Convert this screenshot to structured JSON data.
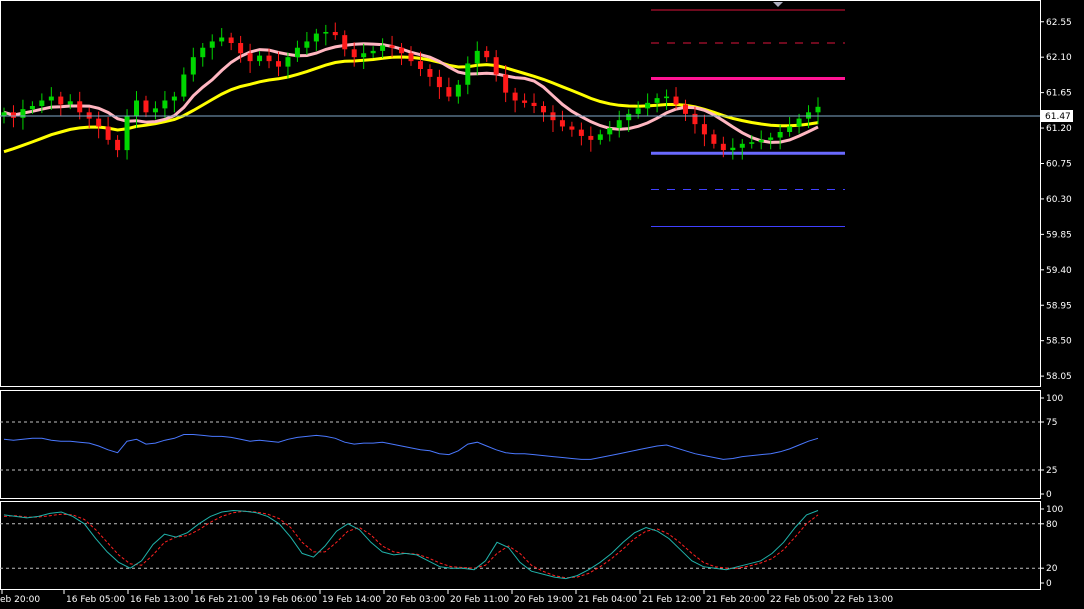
{
  "colors": {
    "background": "#000000",
    "frame": "#ffffff",
    "bull_candle": "#00d600",
    "bear_candle": "#ff1a1a",
    "ma_fast": "#ffb6c1",
    "ma_slow": "#ffff00",
    "rsi": "#4a78ff",
    "stoch_main": "#20b2aa",
    "stoch_signal": "#ff2020",
    "pivot_top": "#dc143c",
    "pivot_mid_r": "#ff1493",
    "pivot_mid_s": "#6a6aff",
    "pivot_low": "#4040ff",
    "current_price": "#7fa7c7"
  },
  "chart_data": [
    {
      "type": "candlestick",
      "name": "price",
      "ylim": [
        57.95,
        62.75
      ],
      "y_ticks": [
        "62.55",
        "62.10",
        "61.65",
        "61.20",
        "60.75",
        "60.30",
        "59.85",
        "59.40",
        "58.95",
        "58.50",
        "58.05"
      ],
      "current_price": "61.47",
      "x_ticks": [
        "eb 20:00",
        "16 Feb 05:00",
        "16 Feb 13:00",
        "16 Feb 21:00",
        "19 Feb 06:00",
        "19 Feb 14:00",
        "20 Feb 03:00",
        "20 Feb 11:00",
        "20 Feb 19:00",
        "21 Feb 04:00",
        "21 Feb 12:00",
        "21 Feb 20:00",
        "22 Feb 05:00",
        "22 Feb 13:00"
      ],
      "close_series": [
        61.4,
        61.33,
        61.44,
        61.48,
        61.55,
        61.6,
        61.5,
        61.54,
        61.4,
        61.32,
        61.22,
        61.05,
        60.92,
        61.35,
        61.55,
        61.4,
        61.45,
        61.55,
        61.6,
        61.88,
        62.1,
        62.22,
        62.3,
        62.35,
        62.28,
        62.15,
        62.05,
        62.12,
        62.05,
        61.98,
        62.1,
        62.22,
        62.3,
        62.4,
        62.42,
        62.38,
        62.2,
        62.1,
        62.15,
        62.18,
        62.25,
        62.22,
        62.15,
        62.05,
        61.95,
        61.85,
        61.72,
        61.6,
        61.75,
        62.02,
        62.18,
        62.1,
        61.88,
        61.65,
        61.55,
        61.52,
        61.48,
        61.4,
        61.3,
        61.22,
        61.18,
        61.1,
        61.05,
        61.12,
        61.2,
        61.3,
        61.38,
        61.45,
        61.52,
        61.58,
        61.6,
        61.5,
        61.38,
        61.25,
        61.12,
        61.0,
        60.92,
        60.95,
        61.0,
        61.02,
        61.05,
        61.08,
        61.15,
        61.22,
        61.32,
        61.4,
        61.47
      ],
      "pivot_levels": [
        62.7,
        62.28,
        61.83,
        60.88,
        60.42,
        59.95
      ]
    },
    {
      "type": "line",
      "name": "rsi",
      "ylim": [
        0,
        100
      ],
      "y_ticks": [
        "100",
        "75",
        "25",
        "0"
      ],
      "levels": [
        75,
        25
      ],
      "values": [
        57,
        56,
        57,
        58,
        58,
        56,
        55,
        55,
        54,
        53,
        50,
        46,
        43,
        55,
        57,
        52,
        53,
        56,
        58,
        62,
        62,
        61,
        60,
        60,
        59,
        57,
        55,
        56,
        55,
        54,
        57,
        59,
        60,
        61,
        60,
        58,
        54,
        52,
        53,
        53,
        54,
        52,
        50,
        48,
        46,
        45,
        42,
        41,
        45,
        52,
        54,
        50,
        46,
        43,
        42,
        42,
        41,
        40,
        39,
        38,
        37,
        36,
        36,
        38,
        40,
        42,
        44,
        46,
        48,
        50,
        51,
        48,
        45,
        42,
        40,
        38,
        36,
        37,
        39,
        40,
        41,
        42,
        44,
        47,
        51,
        55,
        58
      ]
    },
    {
      "type": "line",
      "name": "stochastic",
      "ylim": [
        0,
        100
      ],
      "y_ticks": [
        "100",
        "80",
        "20",
        "0"
      ],
      "levels": [
        80,
        20
      ],
      "main": [
        92,
        90,
        88,
        90,
        94,
        96,
        90,
        80,
        60,
        42,
        28,
        20,
        30,
        52,
        66,
        62,
        68,
        80,
        90,
        96,
        98,
        97,
        95,
        90,
        80,
        62,
        40,
        35,
        50,
        70,
        80,
        72,
        55,
        42,
        38,
        40,
        38,
        30,
        22,
        20,
        20,
        18,
        30,
        55,
        48,
        28,
        16,
        12,
        8,
        6,
        10,
        18,
        28,
        40,
        55,
        68,
        75,
        70,
        60,
        45,
        30,
        22,
        20,
        18,
        22,
        26,
        30,
        40,
        55,
        75,
        92,
        98
      ],
      "signal": [
        90,
        91,
        89,
        89,
        91,
        93,
        92,
        86,
        72,
        55,
        38,
        26,
        24,
        38,
        55,
        62,
        64,
        72,
        82,
        90,
        95,
        97,
        96,
        93,
        87,
        75,
        55,
        42,
        42,
        55,
        70,
        75,
        65,
        50,
        42,
        40,
        39,
        34,
        27,
        22,
        21,
        20,
        24,
        40,
        50,
        40,
        24,
        16,
        10,
        7,
        8,
        13,
        22,
        33,
        46,
        60,
        70,
        73,
        66,
        54,
        40,
        28,
        22,
        20,
        20,
        23,
        27,
        33,
        45,
        62,
        80,
        92
      ]
    }
  ]
}
